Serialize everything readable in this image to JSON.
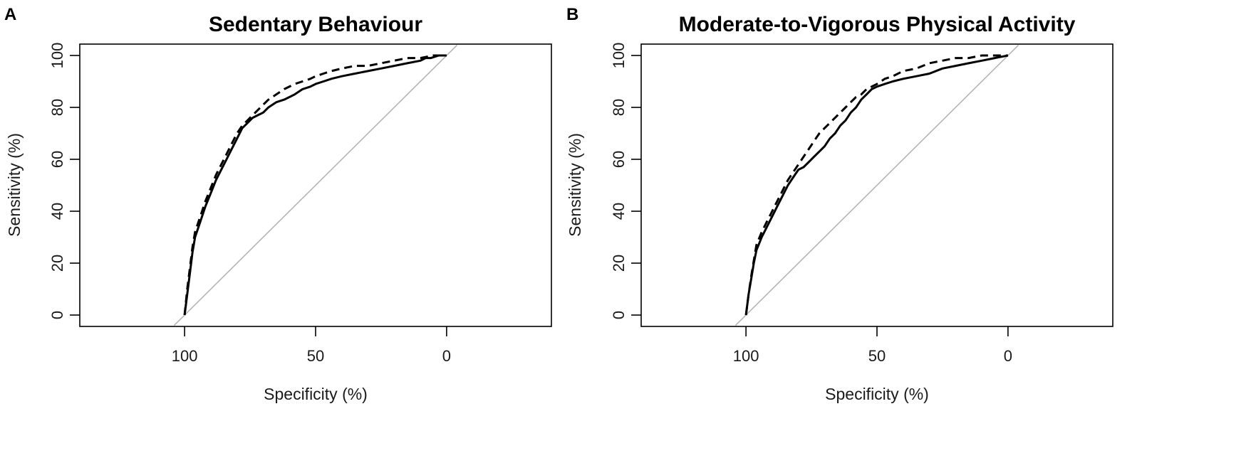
{
  "chart_data": [
    {
      "type": "line",
      "panel": "A",
      "title": "Sedentary Behaviour",
      "xlabel": "Specificity (%)",
      "ylabel": "Sensitivity (%)",
      "xlim": [
        140,
        -40
      ],
      "ylim": [
        0,
        100
      ],
      "x_ticks": [
        "100",
        "50",
        "0"
      ],
      "y_ticks": [
        "0",
        "20",
        "40",
        "60",
        "80",
        "100"
      ],
      "series": [
        {
          "name": "solid",
          "style": "solid",
          "x": [
            100,
            99,
            98,
            97,
            96,
            94,
            92,
            90,
            88,
            86,
            84,
            82,
            80,
            78,
            76,
            74,
            72,
            70,
            68,
            65,
            62,
            58,
            55,
            52,
            50,
            47,
            44,
            40,
            35,
            30,
            25,
            20,
            15,
            10,
            8,
            6,
            3,
            0
          ],
          "y": [
            0,
            8,
            16,
            24,
            30,
            36,
            42,
            47,
            52,
            56,
            60,
            64,
            68,
            72,
            74,
            76,
            77,
            78,
            80,
            82,
            83,
            85,
            87,
            88,
            89,
            90,
            91,
            92,
            93,
            94,
            95,
            96,
            97,
            98,
            99,
            99,
            100,
            100
          ]
        },
        {
          "name": "dashed",
          "style": "dashed",
          "x": [
            100,
            99,
            98,
            97,
            96,
            94,
            92,
            90,
            88,
            86,
            84,
            82,
            80,
            78,
            76,
            74,
            72,
            70,
            68,
            65,
            62,
            58,
            55,
            52,
            50,
            47,
            44,
            40,
            35,
            30,
            25,
            20,
            15,
            10,
            5,
            0
          ],
          "y": [
            0,
            10,
            18,
            26,
            32,
            38,
            44,
            49,
            54,
            58,
            62,
            66,
            70,
            73,
            75,
            77,
            79,
            81,
            83,
            85,
            87,
            89,
            90,
            91,
            92,
            93,
            94,
            95,
            96,
            96,
            97,
            98,
            99,
            99,
            100,
            100
          ]
        }
      ]
    },
    {
      "type": "line",
      "panel": "B",
      "title": "Moderate-to-Vigorous Physical Activity",
      "xlabel": "Specificity (%)",
      "ylabel": "Sensitivity (%)",
      "xlim": [
        140,
        -40
      ],
      "ylim": [
        0,
        100
      ],
      "x_ticks": [
        "100",
        "50",
        "0"
      ],
      "y_ticks": [
        "0",
        "20",
        "40",
        "60",
        "80",
        "100"
      ],
      "series": [
        {
          "name": "solid",
          "style": "solid",
          "x": [
            100,
            99,
            98,
            97,
            96,
            94,
            92,
            90,
            88,
            86,
            84,
            82,
            80,
            78,
            76,
            74,
            72,
            70,
            68,
            66,
            64,
            62,
            60,
            58,
            56,
            54,
            52,
            50,
            47,
            44,
            40,
            35,
            30,
            25,
            20,
            15,
            10,
            5,
            0
          ],
          "y": [
            0,
            8,
            14,
            20,
            25,
            30,
            34,
            38,
            42,
            46,
            50,
            53,
            56,
            57,
            59,
            61,
            63,
            65,
            68,
            70,
            73,
            75,
            78,
            80,
            83,
            85,
            87,
            88,
            89,
            90,
            91,
            92,
            93,
            95,
            96,
            97,
            98,
            99,
            100
          ]
        },
        {
          "name": "dashed",
          "style": "dashed",
          "x": [
            100,
            99,
            98,
            97,
            96,
            94,
            92,
            90,
            88,
            86,
            84,
            82,
            80,
            78,
            76,
            74,
            72,
            70,
            68,
            66,
            64,
            62,
            60,
            58,
            56,
            54,
            52,
            50,
            47,
            44,
            40,
            35,
            30,
            25,
            20,
            15,
            10,
            5,
            0
          ],
          "y": [
            0,
            8,
            15,
            21,
            27,
            32,
            36,
            40,
            44,
            48,
            52,
            55,
            58,
            61,
            64,
            67,
            70,
            72,
            74,
            76,
            78,
            80,
            82,
            84,
            85,
            87,
            88,
            89,
            91,
            92,
            94,
            95,
            97,
            98,
            99,
            99,
            100,
            100,
            100
          ]
        }
      ]
    }
  ]
}
